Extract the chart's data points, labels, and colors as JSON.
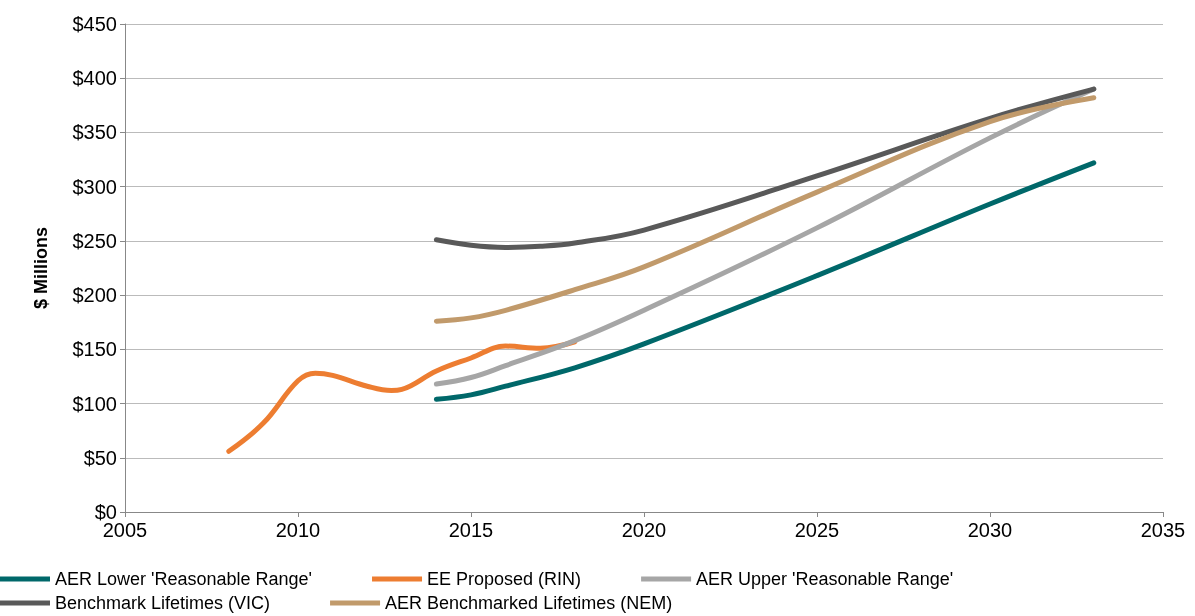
{
  "chart_data": {
    "type": "line",
    "ylabel": "$ Millions",
    "xlim": [
      2005,
      2035
    ],
    "xticks": [
      2005,
      2010,
      2015,
      2020,
      2025,
      2030,
      2035
    ],
    "ylim": [
      0,
      450
    ],
    "yticks": [
      {
        "value": 0,
        "label": "$0"
      },
      {
        "value": 50,
        "label": "$50"
      },
      {
        "value": 100,
        "label": "$100"
      },
      {
        "value": 150,
        "label": "$150"
      },
      {
        "value": 200,
        "label": "$200"
      },
      {
        "value": 250,
        "label": "$250"
      },
      {
        "value": 300,
        "label": "$300"
      },
      {
        "value": 350,
        "label": "$350"
      },
      {
        "value": 400,
        "label": "$400"
      },
      {
        "value": 450,
        "label": "$450"
      }
    ],
    "grid": "y",
    "legend": "bottom",
    "marker": "none",
    "line_style": "solid",
    "series": [
      {
        "name": "AER Lower 'Reasonable Range'",
        "color": "#00686a",
        "x": [
          2014,
          2015,
          2016,
          2018,
          2020,
          2025,
          2030,
          2033
        ],
        "values": [
          104,
          108,
          116,
          133,
          155,
          218,
          284,
          322
        ]
      },
      {
        "name": "EE Proposed (RIN)",
        "color": "#ed7d31",
        "x": [
          2008,
          2009,
          2010,
          2010.5,
          2011,
          2012,
          2012.7,
          2013,
          2014,
          2015,
          2016,
          2017,
          2018
        ],
        "values": [
          56,
          82,
          121,
          128,
          126,
          116,
          112,
          113,
          130,
          142,
          153,
          151,
          157
        ]
      },
      {
        "name": "AER Upper 'Reasonable Range'",
        "color": "#a6a6a6",
        "x": [
          2014,
          2015,
          2016,
          2018,
          2020,
          2025,
          2030,
          2033
        ],
        "values": [
          118,
          124,
          135,
          158,
          186,
          262,
          345,
          390
        ]
      },
      {
        "name": "Benchmark Lifetimes (VIC)",
        "color": "#595959",
        "x": [
          2014,
          2015,
          2016,
          2017,
          2018,
          2020,
          2025,
          2030,
          2033
        ],
        "values": [
          251,
          246,
          244,
          245,
          248,
          260,
          310,
          363,
          390
        ]
      },
      {
        "name": "AER Benchmarked Lifetimes (NEM)",
        "color": "#c19a6b",
        "x": [
          2014,
          2015,
          2016,
          2018,
          2020,
          2025,
          2030,
          2033
        ],
        "values": [
          176,
          179,
          186,
          205,
          226,
          295,
          360,
          382
        ]
      }
    ]
  }
}
